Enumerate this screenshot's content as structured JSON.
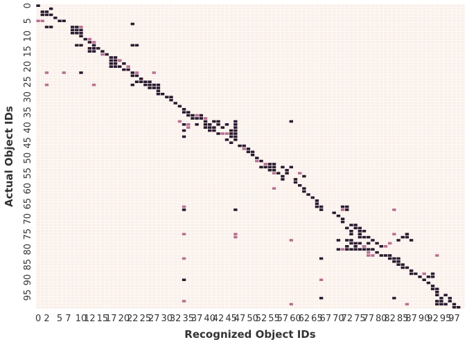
{
  "chart_data": {
    "type": "heatmap",
    "xlabel": "Recognized Object IDs",
    "ylabel": "Actual Object IDs",
    "n": 100,
    "x_ticks": [
      0,
      2,
      5,
      7,
      10,
      12,
      15,
      17,
      20,
      22,
      25,
      27,
      30,
      32,
      35,
      37,
      40,
      42,
      45,
      47,
      50,
      52,
      55,
      57,
      60,
      62,
      65,
      67,
      70,
      72,
      75,
      77,
      80,
      82,
      85,
      87,
      90,
      92,
      95,
      97
    ],
    "x_tick_labels": [
      "0",
      "2",
      "5",
      "7",
      "10",
      "12",
      "15",
      "17",
      "20",
      "22",
      "25",
      "27",
      "30",
      "32",
      "35",
      "37",
      "40",
      "42",
      "45",
      "47",
      "50",
      "52",
      "55",
      "57",
      "60",
      "62",
      "65",
      "67",
      "70",
      "72",
      "75",
      "77",
      "80",
      "82",
      "85",
      "87",
      "90",
      "92",
      "95",
      "97"
    ],
    "y_ticks": [
      0,
      5,
      10,
      15,
      20,
      25,
      30,
      35,
      40,
      45,
      50,
      55,
      60,
      65,
      70,
      75,
      80,
      85,
      90,
      95
    ],
    "y_tick_labels": [
      "0",
      "5",
      "10",
      "15",
      "20",
      "25",
      "30",
      "35",
      "40",
      "45",
      "50",
      "55",
      "60",
      "65",
      "70",
      "75",
      "80",
      "85",
      "90",
      "95"
    ],
    "colors": {
      "background": "#faf0ea",
      "gridline": "#ffffff",
      "strong": "#2b1a2e",
      "weak": "#b8708f",
      "tick_text": "#333333"
    },
    "strong_cells": [
      [
        0,
        0
      ],
      [
        1,
        3
      ],
      [
        2,
        1
      ],
      [
        2,
        2
      ],
      [
        3,
        1
      ],
      [
        3,
        2
      ],
      [
        3,
        3
      ],
      [
        4,
        4
      ],
      [
        5,
        5
      ],
      [
        5,
        6
      ],
      [
        6,
        22
      ],
      [
        7,
        2
      ],
      [
        7,
        3
      ],
      [
        7,
        8
      ],
      [
        7,
        9
      ],
      [
        8,
        8
      ],
      [
        8,
        9
      ],
      [
        8,
        10
      ],
      [
        9,
        8
      ],
      [
        9,
        9
      ],
      [
        9,
        10
      ],
      [
        10,
        10
      ],
      [
        11,
        11
      ],
      [
        12,
        12
      ],
      [
        13,
        9
      ],
      [
        13,
        10
      ],
      [
        13,
        13
      ],
      [
        13,
        22
      ],
      [
        13,
        23
      ],
      [
        14,
        12
      ],
      [
        14,
        13
      ],
      [
        14,
        14
      ],
      [
        15,
        12
      ],
      [
        15,
        13
      ],
      [
        15,
        15
      ],
      [
        16,
        16
      ],
      [
        17,
        17
      ],
      [
        17,
        18
      ],
      [
        18,
        17
      ],
      [
        18,
        18
      ],
      [
        18,
        19
      ],
      [
        19,
        17
      ],
      [
        19,
        18
      ],
      [
        19,
        20
      ],
      [
        20,
        17
      ],
      [
        20,
        18
      ],
      [
        20,
        19
      ],
      [
        21,
        20
      ],
      [
        21,
        21
      ],
      [
        22,
        22
      ],
      [
        22,
        10
      ],
      [
        23,
        22
      ],
      [
        23,
        23
      ],
      [
        24,
        24
      ],
      [
        25,
        23
      ],
      [
        25,
        24
      ],
      [
        25,
        25
      ],
      [
        25,
        26
      ],
      [
        26,
        22
      ],
      [
        26,
        25
      ],
      [
        26,
        26
      ],
      [
        26,
        27
      ],
      [
        26,
        28
      ],
      [
        27,
        26
      ],
      [
        27,
        27
      ],
      [
        27,
        28
      ],
      [
        28,
        28
      ],
      [
        29,
        28
      ],
      [
        29,
        29
      ],
      [
        30,
        30
      ],
      [
        30,
        31
      ],
      [
        31,
        31
      ],
      [
        32,
        32
      ],
      [
        33,
        33
      ],
      [
        34,
        34
      ],
      [
        35,
        34
      ],
      [
        35,
        35
      ],
      [
        36,
        35
      ],
      [
        36,
        36
      ],
      [
        36,
        38
      ],
      [
        37,
        36
      ],
      [
        37,
        37
      ],
      [
        37,
        38
      ],
      [
        38,
        39
      ],
      [
        38,
        41
      ],
      [
        38,
        42
      ],
      [
        38,
        46
      ],
      [
        38,
        59
      ],
      [
        39,
        34
      ],
      [
        39,
        37
      ],
      [
        39,
        39
      ],
      [
        39,
        40
      ],
      [
        39,
        42
      ],
      [
        39,
        44
      ],
      [
        39,
        46
      ],
      [
        40,
        39
      ],
      [
        40,
        40
      ],
      [
        40,
        41
      ],
      [
        40,
        43
      ],
      [
        40,
        46
      ],
      [
        41,
        34
      ],
      [
        41,
        40
      ],
      [
        41,
        41
      ],
      [
        41,
        45
      ],
      [
        41,
        46
      ],
      [
        42,
        42
      ],
      [
        42,
        45
      ],
      [
        42,
        46
      ],
      [
        43,
        34
      ],
      [
        43,
        45
      ],
      [
        43,
        46
      ],
      [
        44,
        44
      ],
      [
        44,
        46
      ],
      [
        45,
        45
      ],
      [
        46,
        47
      ],
      [
        46,
        48
      ],
      [
        47,
        49
      ],
      [
        48,
        49
      ],
      [
        48,
        50
      ],
      [
        49,
        50
      ],
      [
        50,
        51
      ],
      [
        51,
        52
      ],
      [
        52,
        54
      ],
      [
        52,
        55
      ],
      [
        53,
        52
      ],
      [
        53,
        53
      ],
      [
        53,
        54
      ],
      [
        53,
        55
      ],
      [
        53,
        57
      ],
      [
        53,
        59
      ],
      [
        54,
        54
      ],
      [
        54,
        55
      ],
      [
        54,
        58
      ],
      [
        55,
        56
      ],
      [
        55,
        58
      ],
      [
        56,
        57
      ],
      [
        56,
        62
      ],
      [
        57,
        57
      ],
      [
        57,
        60
      ],
      [
        58,
        60
      ],
      [
        59,
        61
      ],
      [
        60,
        62
      ],
      [
        61,
        62
      ],
      [
        62,
        63
      ],
      [
        63,
        64
      ],
      [
        64,
        65
      ],
      [
        65,
        65
      ],
      [
        66,
        65
      ],
      [
        66,
        66
      ],
      [
        66,
        71
      ],
      [
        66,
        72
      ],
      [
        67,
        66
      ],
      [
        67,
        34
      ],
      [
        67,
        46
      ],
      [
        67,
        72
      ],
      [
        68,
        69
      ],
      [
        69,
        70
      ],
      [
        70,
        71
      ],
      [
        71,
        71
      ],
      [
        72,
        73
      ],
      [
        72,
        74
      ],
      [
        73,
        72
      ],
      [
        73,
        74
      ],
      [
        73,
        75
      ],
      [
        74,
        73
      ],
      [
        74,
        75
      ],
      [
        74,
        76
      ],
      [
        75,
        73
      ],
      [
        75,
        75
      ],
      [
        75,
        86
      ],
      [
        76,
        75
      ],
      [
        76,
        76
      ],
      [
        76,
        77
      ],
      [
        76,
        85
      ],
      [
        76,
        86
      ],
      [
        77,
        70
      ],
      [
        77,
        72
      ],
      [
        77,
        73
      ],
      [
        77,
        78
      ],
      [
        77,
        84
      ],
      [
        77,
        87
      ],
      [
        78,
        73
      ],
      [
        78,
        74
      ],
      [
        78,
        75
      ],
      [
        78,
        77
      ],
      [
        78,
        79
      ],
      [
        79,
        72
      ],
      [
        79,
        74
      ],
      [
        79,
        76
      ],
      [
        79,
        80
      ],
      [
        80,
        70
      ],
      [
        80,
        72
      ],
      [
        80,
        73
      ],
      [
        80,
        74
      ],
      [
        80,
        75
      ],
      [
        80,
        76
      ],
      [
        80,
        77
      ],
      [
        80,
        78
      ],
      [
        81,
        79
      ],
      [
        82,
        80
      ],
      [
        82,
        81
      ],
      [
        82,
        82
      ],
      [
        83,
        66
      ],
      [
        83,
        82
      ],
      [
        83,
        83
      ],
      [
        83,
        84
      ],
      [
        84,
        83
      ],
      [
        84,
        84
      ],
      [
        85,
        84
      ],
      [
        85,
        85
      ],
      [
        86,
        85
      ],
      [
        86,
        86
      ],
      [
        87,
        87
      ],
      [
        88,
        87
      ],
      [
        88,
        88
      ],
      [
        88,
        92
      ],
      [
        89,
        89
      ],
      [
        89,
        91
      ],
      [
        89,
        92
      ],
      [
        90,
        34
      ],
      [
        90,
        90
      ],
      [
        91,
        91
      ],
      [
        92,
        92
      ],
      [
        93,
        92
      ],
      [
        93,
        93
      ],
      [
        94,
        93
      ],
      [
        95,
        93
      ],
      [
        95,
        95
      ],
      [
        96,
        66
      ],
      [
        96,
        83
      ],
      [
        96,
        94
      ],
      [
        96,
        96
      ],
      [
        97,
        93
      ],
      [
        97,
        94
      ],
      [
        97,
        96
      ],
      [
        98,
        93
      ],
      [
        98,
        94
      ],
      [
        98,
        95
      ],
      [
        98,
        97
      ],
      [
        99,
        97
      ],
      [
        99,
        98
      ]
    ],
    "weak_cells": [
      [
        5,
        0
      ],
      [
        5,
        1
      ],
      [
        7,
        10
      ],
      [
        11,
        12
      ],
      [
        12,
        13
      ],
      [
        16,
        15
      ],
      [
        18,
        19
      ],
      [
        20,
        21
      ],
      [
        22,
        2
      ],
      [
        22,
        6
      ],
      [
        22,
        23
      ],
      [
        22,
        27
      ],
      [
        26,
        2
      ],
      [
        26,
        13
      ],
      [
        36,
        37
      ],
      [
        37,
        39
      ],
      [
        38,
        33
      ],
      [
        39,
        35
      ],
      [
        40,
        35
      ],
      [
        42,
        43
      ],
      [
        42,
        44
      ],
      [
        47,
        48
      ],
      [
        51,
        51
      ],
      [
        52,
        53
      ],
      [
        55,
        55
      ],
      [
        55,
        61
      ],
      [
        60,
        55
      ],
      [
        66,
        34
      ],
      [
        67,
        71
      ],
      [
        67,
        83
      ],
      [
        75,
        34
      ],
      [
        75,
        46
      ],
      [
        75,
        83
      ],
      [
        76,
        46
      ],
      [
        77,
        59
      ],
      [
        78,
        82
      ],
      [
        79,
        76
      ],
      [
        79,
        81
      ],
      [
        80,
        71
      ],
      [
        81,
        77
      ],
      [
        82,
        77
      ],
      [
        82,
        78
      ],
      [
        82,
        93
      ],
      [
        83,
        34
      ],
      [
        88,
        90
      ],
      [
        90,
        66
      ],
      [
        97,
        34
      ],
      [
        98,
        59
      ],
      [
        98,
        86
      ]
    ]
  }
}
